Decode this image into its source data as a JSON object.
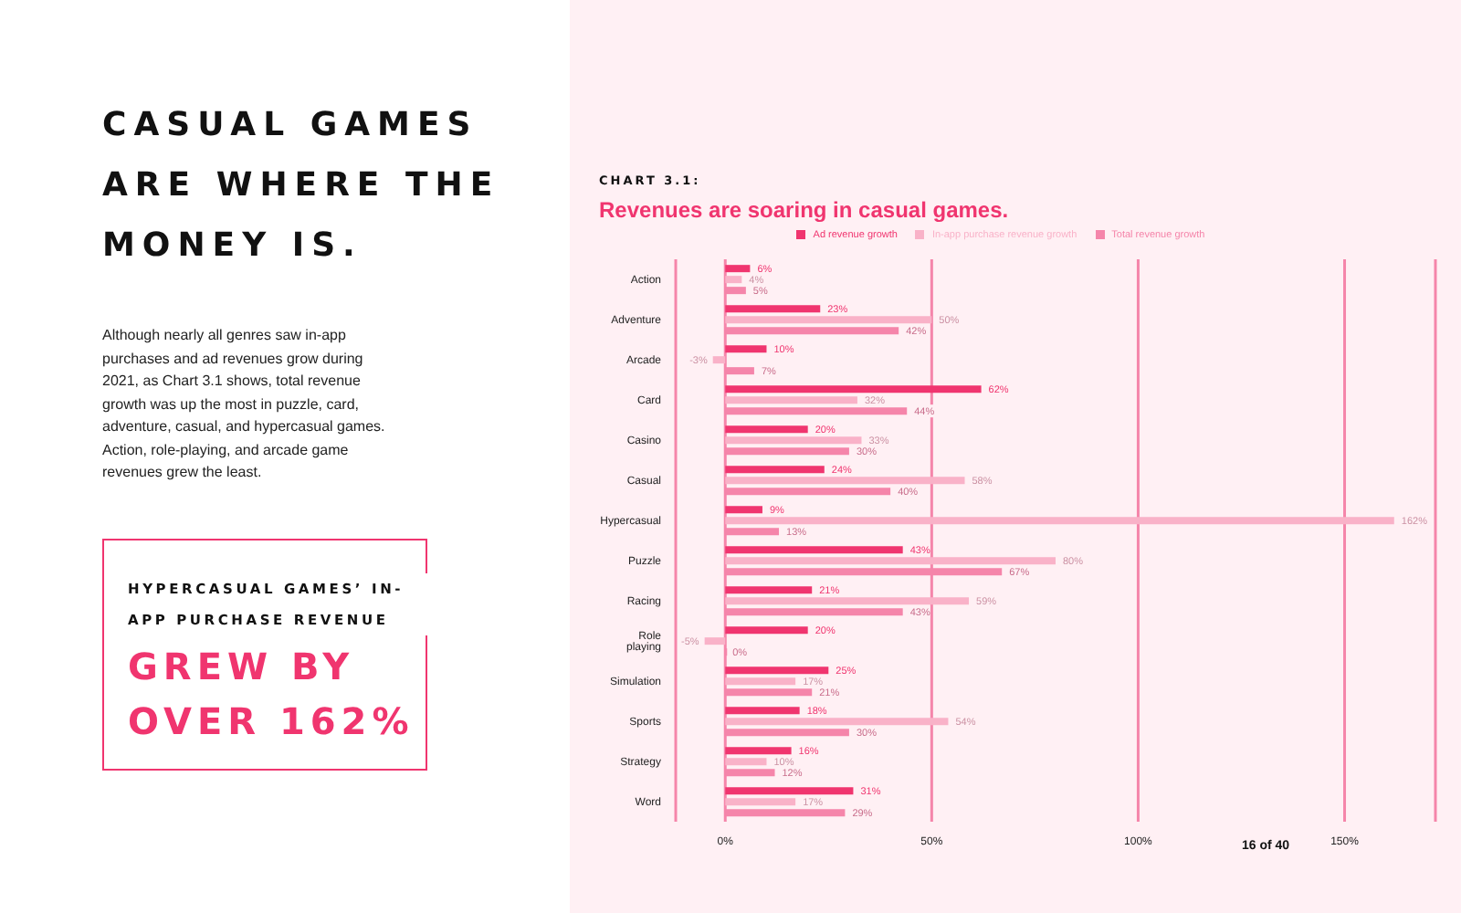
{
  "chart_data": {
    "type": "bar",
    "orientation": "horizontal",
    "title": "Revenues are soaring in casual games.",
    "subtitle": "CHART 3.1:",
    "annotations": [
      "CASUAL GAMES ARE WHERE THE MONEY IS.",
      "Although nearly all genres saw in-app purchases and ad revenues grow during 2021, as Chart 3.1 shows, total revenue growth was up the most in puzzle, card, adventure, casual, and hypercasual games. Action, role-playing, and arcade game revenues grew the least.",
      "HYPERCASUAL GAMES’ IN-APP PURCHASE REVENUE",
      "GREW BY OVER 162%",
      "16 of 40"
    ],
    "categories": [
      "Action",
      "Adventure",
      "Arcade",
      "Card",
      "Casino",
      "Casual",
      "Hypercasual",
      "Puzzle",
      "Racing",
      "Role playing",
      "Simulation",
      "Sports",
      "Strategy",
      "Word"
    ],
    "series": [
      {
        "name": "Ad revenue growth",
        "color": "#f0356f",
        "values": [
          6,
          23,
          10,
          62,
          20,
          24,
          9,
          43,
          21,
          20,
          25,
          18,
          16,
          31
        ],
        "value_labels": [
          "6%",
          "23%",
          "10%",
          "62%",
          "20%",
          "24%",
          "9%",
          "43%",
          "21%",
          "20%",
          "25%",
          "18%",
          "16%",
          "31%"
        ]
      },
      {
        "name": "In-app purchase revenue growth",
        "color": "#f9b2c8",
        "values": [
          4,
          50,
          -3,
          32,
          33,
          58,
          162,
          80,
          59,
          -5,
          17,
          54,
          10,
          17
        ],
        "value_labels": [
          "4%",
          "50%",
          "-3%",
          "32%",
          "33%",
          "58%",
          "162%",
          "80%",
          "59%",
          "-5%",
          "17%",
          "54%",
          "10%",
          "17%"
        ]
      },
      {
        "name": "Total revenue growth",
        "color": "#f585aa",
        "values": [
          5,
          42,
          7,
          44,
          30,
          40,
          13,
          67,
          43,
          0,
          21,
          30,
          12,
          29
        ],
        "value_labels": [
          "5%",
          "42%",
          "7%",
          "44%",
          "30%",
          "40%",
          "13%",
          "67%",
          "43%",
          "0%",
          "21%",
          "30%",
          "12%",
          "29%"
        ]
      }
    ],
    "xlim": [
      -12,
      172
    ],
    "xticks": [
      {
        "value": 0,
        "label": "0%"
      },
      {
        "value": 50,
        "label": "50%"
      },
      {
        "value": 100,
        "label": "100%"
      },
      {
        "value": 150,
        "label": "150%"
      }
    ],
    "grid": "x",
    "legend": "top"
  }
}
